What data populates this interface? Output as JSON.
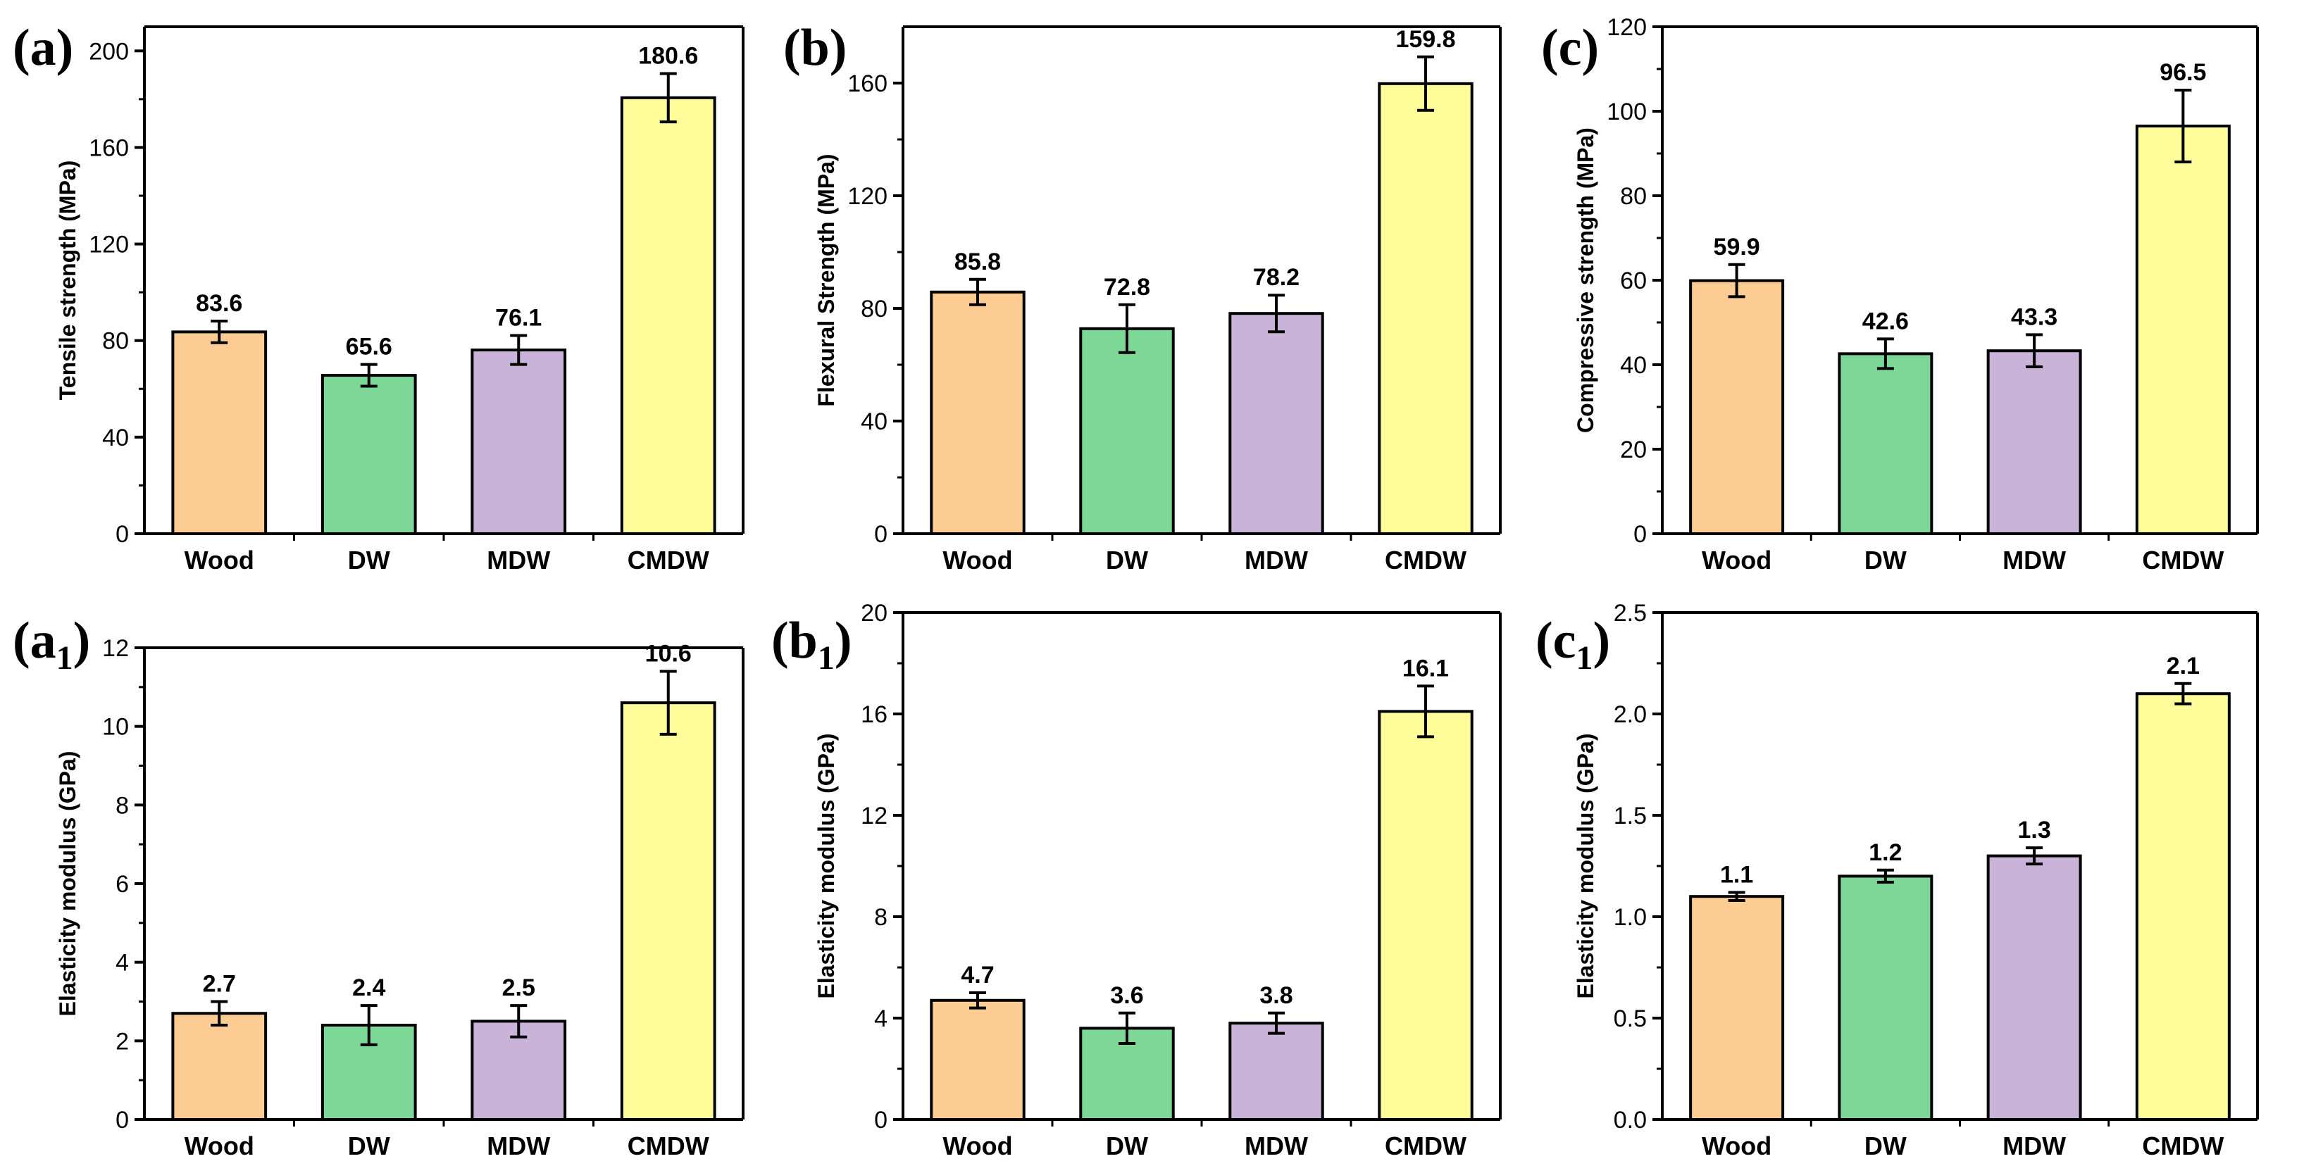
{
  "colors": {
    "Wood": "#FDCC93",
    "DW": "#7DD898",
    "MDW": "#C9B3D9",
    "CMDW": "#FEFD9A",
    "axis": "#000000"
  },
  "chart_data": [
    {
      "type": "bar",
      "panel_label": "(a)",
      "panel_sub": "",
      "ylabel": "Tensile strength (MPa)",
      "categories": [
        "Wood",
        "DW",
        "MDW",
        "CMDW"
      ],
      "values": [
        83.6,
        65.6,
        76.1,
        180.6
      ],
      "value_labels": [
        "83.6",
        "65.6",
        "76.1",
        "180.6"
      ],
      "errors": [
        4.5,
        4.5,
        6.0,
        10.0
      ],
      "ylim": [
        0,
        210
      ],
      "yticks": [
        0,
        40,
        80,
        120,
        160,
        200
      ],
      "ytick_labels": [
        "0",
        "40",
        "80",
        "120",
        "160",
        "200"
      ]
    },
    {
      "type": "bar",
      "panel_label": "(b)",
      "panel_sub": "",
      "ylabel": "Flexural Strength (MPa)",
      "categories": [
        "Wood",
        "DW",
        "MDW",
        "CMDW"
      ],
      "values": [
        85.8,
        72.8,
        78.2,
        159.8
      ],
      "value_labels": [
        "85.8",
        "72.8",
        "78.2",
        "159.8"
      ],
      "errors": [
        4.5,
        8.5,
        6.5,
        9.5
      ],
      "ylim": [
        0,
        180
      ],
      "yticks": [
        0,
        40,
        80,
        120,
        160
      ],
      "ytick_labels": [
        "0",
        "40",
        "80",
        "120",
        "160"
      ]
    },
    {
      "type": "bar",
      "panel_label": "(c)",
      "panel_sub": "",
      "ylabel": "Compressive strength (MPa)",
      "categories": [
        "Wood",
        "DW",
        "MDW",
        "CMDW"
      ],
      "values": [
        59.9,
        42.6,
        43.3,
        96.5
      ],
      "value_labels": [
        "59.9",
        "42.6",
        "43.3",
        "96.5"
      ],
      "errors": [
        3.8,
        3.5,
        3.8,
        8.5
      ],
      "ylim": [
        0,
        120
      ],
      "yticks": [
        0,
        20,
        40,
        60,
        80,
        100,
        120
      ],
      "ytick_labels": [
        "0",
        "20",
        "40",
        "60",
        "80",
        "100",
        "120"
      ]
    },
    {
      "type": "bar",
      "panel_label": "(a",
      "panel_sub": "1",
      "ylabel": "Elasticity modulus (GPa)",
      "categories": [
        "Wood",
        "DW",
        "MDW",
        "CMDW"
      ],
      "values": [
        2.7,
        2.4,
        2.5,
        10.6
      ],
      "value_labels": [
        "2.7",
        "2.4",
        "2.5",
        "10.6"
      ],
      "errors": [
        0.3,
        0.5,
        0.4,
        0.8
      ],
      "ylim": [
        0,
        12
      ],
      "yticks": [
        0,
        2,
        4,
        6,
        8,
        10,
        12
      ],
      "ytick_labels": [
        "0",
        "2",
        "4",
        "6",
        "8",
        "10",
        "12"
      ]
    },
    {
      "type": "bar",
      "panel_label": "(b",
      "panel_sub": "1",
      "ylabel": "Elasticity modulus (GPa)",
      "categories": [
        "Wood",
        "DW",
        "MDW",
        "CMDW"
      ],
      "values": [
        4.7,
        3.6,
        3.8,
        16.1
      ],
      "value_labels": [
        "4.7",
        "3.6",
        "3.8",
        "16.1"
      ],
      "errors": [
        0.3,
        0.6,
        0.4,
        1.0
      ],
      "ylim": [
        0,
        20
      ],
      "yticks": [
        0,
        4,
        8,
        12,
        16,
        20
      ],
      "ytick_labels": [
        "0",
        "4",
        "8",
        "12",
        "16",
        "20"
      ]
    },
    {
      "type": "bar",
      "panel_label": "(c",
      "panel_sub": "1",
      "ylabel": "Elasticity modulus (GPa)",
      "categories": [
        "Wood",
        "DW",
        "MDW",
        "CMDW"
      ],
      "values": [
        1.1,
        1.2,
        1.3,
        2.1
      ],
      "value_labels": [
        "1.1",
        "1.2",
        "1.3",
        "2.1"
      ],
      "errors": [
        0.02,
        0.03,
        0.04,
        0.05
      ],
      "ylim": [
        0,
        2.5
      ],
      "yticks": [
        0,
        0.5,
        1.0,
        1.5,
        2.0,
        2.5
      ],
      "ytick_labels": [
        "0.0",
        "0.5",
        "1.0",
        "1.5",
        "2.0",
        "2.5"
      ]
    }
  ]
}
